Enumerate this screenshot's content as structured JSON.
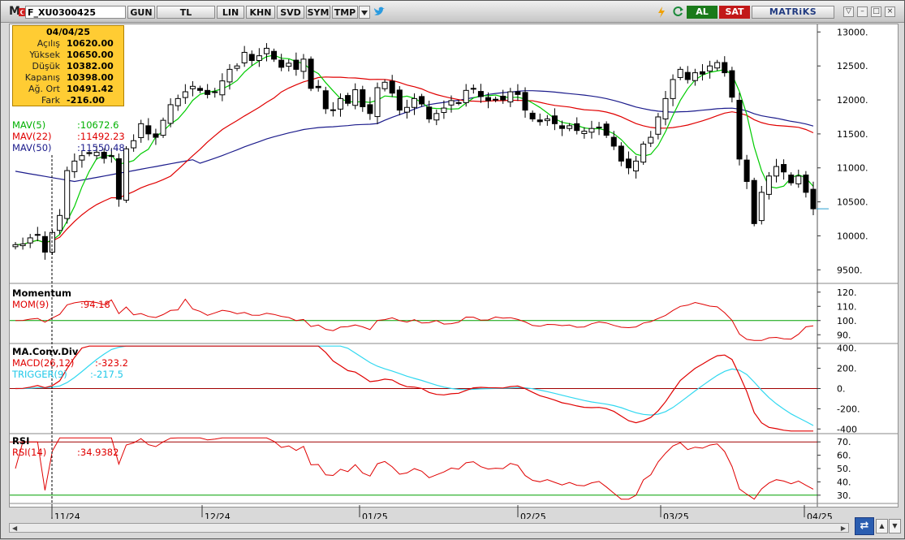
{
  "toolbar": {
    "logo": "M",
    "symbol": "F_XU0300425",
    "buttons": [
      "GUN",
      "TL",
      "LIN",
      "KHN",
      "SVD",
      "SYM",
      "TMP"
    ],
    "buy_label": "AL",
    "sell_label": "SAT",
    "brand": "MATRiKS"
  },
  "info": {
    "date": "04/04/25",
    "rows": [
      {
        "label": "Açılış",
        "value": "10620.00"
      },
      {
        "label": "Yüksek",
        "value": "10650.00"
      },
      {
        "label": "Düşük",
        "value": "10382.00"
      },
      {
        "label": "Kapanış",
        "value": "10398.00"
      },
      {
        "label": "Ağ. Ort",
        "value": "10491.42"
      },
      {
        "label": "Fark",
        "value": "-216.00"
      }
    ]
  },
  "indicators": {
    "mav5": {
      "name": "MAV(5)",
      "value": ":10672.6",
      "color": "#00cc00"
    },
    "mav22": {
      "name": "MAV(22)",
      "value": ":11492.23",
      "color": "#e00000"
    },
    "mav50": {
      "name": "MAV(50)",
      "value": ":11550.48",
      "color": "#1c1c8c"
    }
  },
  "momentum": {
    "title": "Momentum",
    "name": "MOM(9)",
    "value": ":94.18",
    "ticks": [
      "120.",
      "110.",
      "100.",
      "90."
    ]
  },
  "macd": {
    "title": "MA.Conv.Div",
    "name": "MACD(26,12)",
    "value": ":-323.2",
    "trigger_name": "TRIGGER(9)",
    "trigger_value": ":-217.5",
    "ticks": [
      "400.",
      "200.",
      "0.",
      "-200.",
      "-400"
    ]
  },
  "rsi": {
    "title": "RSI",
    "name": "RSI(14)",
    "value": ":34.9382",
    "ticks": [
      "70.",
      "60.",
      "50.",
      "40.",
      "30."
    ]
  },
  "price_ticks": [
    "13000.",
    "12500.",
    "12000.",
    "11500.",
    "11000.",
    "10500.",
    "10000.",
    "9500."
  ],
  "dates": [
    "11/24",
    "12/24",
    "01/25",
    "02/25",
    "03/25",
    "04/25"
  ],
  "chart_data": {
    "type": "candlestick",
    "ylim": [
      9300,
      13100
    ],
    "closes": [
      9870,
      9880,
      9970,
      10020,
      9760,
      10050,
      10300,
      10960,
      11100,
      11180,
      11210,
      11230,
      11140,
      11180,
      10540,
      11280,
      11400,
      11650,
      11500,
      11450,
      11700,
      11930,
      12020,
      12120,
      12200,
      12140,
      12080,
      12120,
      12280,
      12450,
      12500,
      12700,
      12580,
      12650,
      12760,
      12600,
      12480,
      12540,
      12450,
      12600,
      12170,
      12180,
      11870,
      11850,
      12020,
      11950,
      12150,
      11900,
      11800,
      12180,
      12260,
      12100,
      11850,
      11890,
      12020,
      11940,
      11720,
      11800,
      11880,
      11990,
      11960,
      12140,
      12170,
      12050,
      11990,
      12010,
      12000,
      12120,
      12080,
      11850,
      11720,
      11680,
      11720,
      11650,
      11580,
      11620,
      11550,
      11540,
      11580,
      11600,
      11480,
      11320,
      11100,
      11000,
      11100,
      11350,
      11450,
      11750,
      12020,
      12300,
      12450,
      12300,
      12400,
      12380,
      12500,
      12550,
      12400,
      12040,
      11130,
      10800,
      10180,
      10640,
      10880,
      11020,
      10940,
      10780,
      10880,
      10640,
      10398
    ]
  }
}
